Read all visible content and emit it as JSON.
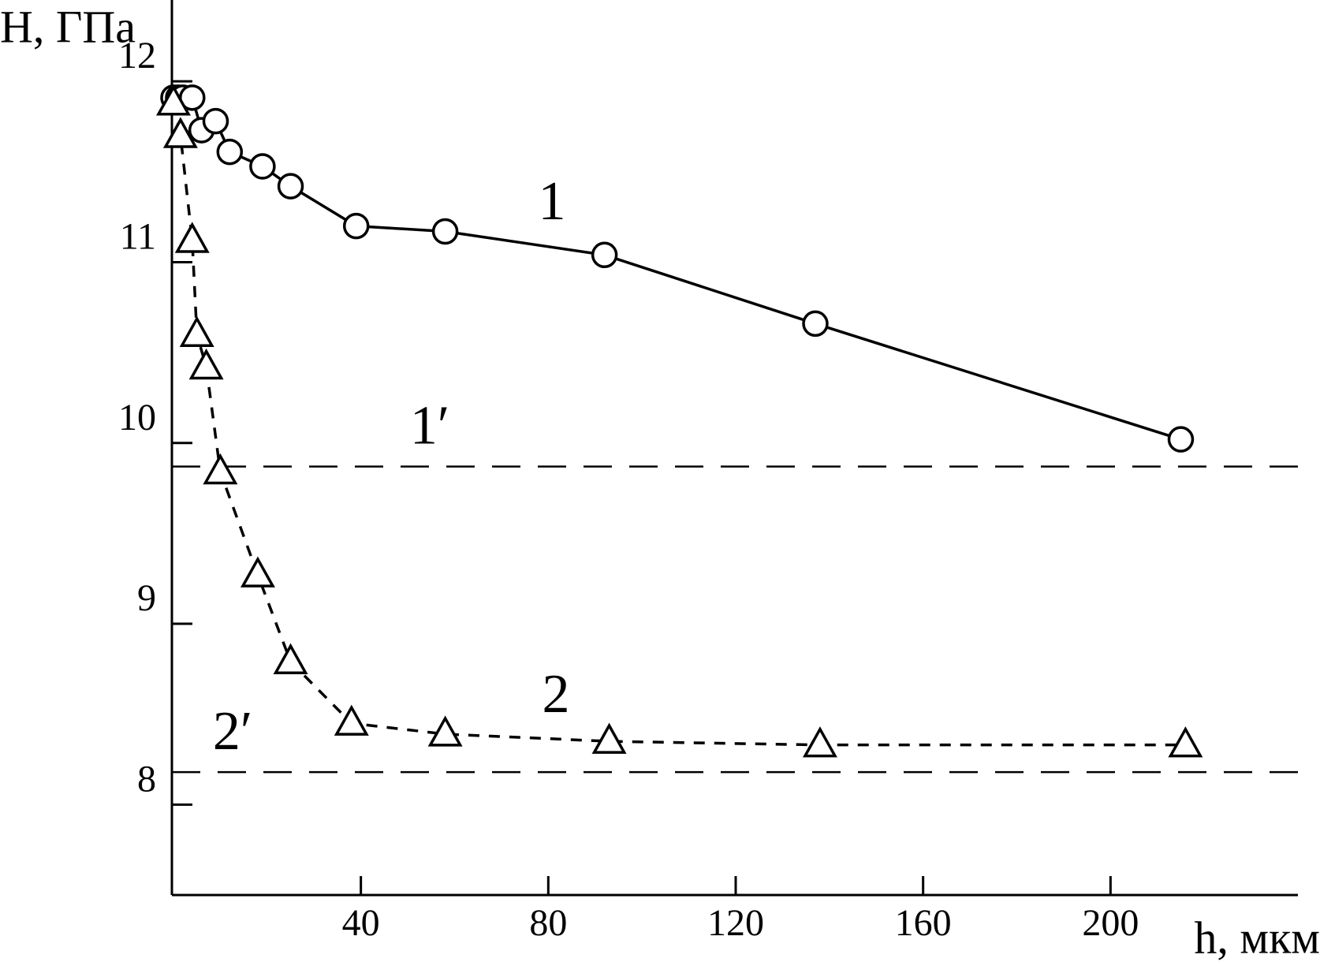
{
  "chart_data": {
    "type": "line",
    "y_label": "H, ГПа",
    "x_label": "h, мкм",
    "xlim": [
      0,
      240
    ],
    "ylim": [
      7.5,
      12.45
    ],
    "xticks": [
      40,
      80,
      120,
      160,
      200
    ],
    "yticks": [
      8,
      9,
      10,
      11,
      12
    ],
    "series": [
      {
        "name": "1",
        "color": "#000000",
        "marker": "circle",
        "line": "solid",
        "x": [
          0,
          1,
          2,
          4,
          6,
          9,
          12,
          19,
          25,
          39,
          58,
          92,
          137,
          215
        ],
        "values": [
          11.91,
          11.91,
          11.91,
          11.91,
          11.73,
          11.78,
          11.61,
          11.53,
          11.42,
          11.2,
          11.17,
          11.04,
          10.66,
          10.02
        ]
      },
      {
        "name": "2",
        "color": "#000000",
        "marker": "triangle",
        "line": "dashed",
        "x": [
          0,
          1.5,
          4,
          5,
          7,
          10,
          18,
          25,
          38,
          58,
          93,
          138,
          216
        ],
        "values": [
          11.88,
          11.7,
          11.12,
          10.6,
          10.42,
          9.84,
          9.27,
          8.79,
          8.45,
          8.39,
          8.35,
          8.33,
          8.33
        ]
      }
    ],
    "reference_lines": [
      {
        "value": 9.87,
        "label": "1′"
      },
      {
        "value": 8.18,
        "label": "2′"
      }
    ]
  }
}
